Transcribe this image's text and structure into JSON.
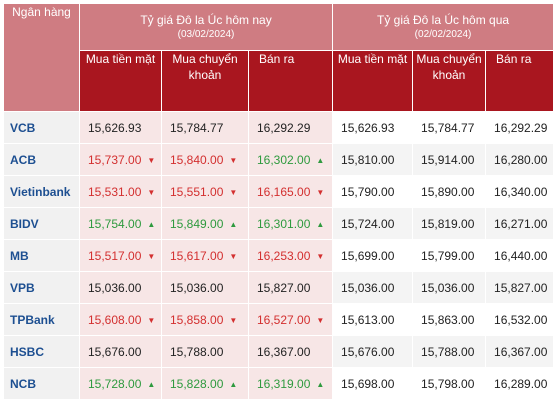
{
  "header": {
    "bank_label": "Ngân hàng",
    "today_title": "Tỷ giá Đô la Úc hôm nay",
    "today_date": "(03/02/2024)",
    "yesterday_title": "Tỷ giá Đô la Úc hôm qua",
    "yesterday_date": "(02/02/2024)",
    "col_cash": "Mua tiền mặt",
    "col_transfer": "Mua chuyển khoản",
    "col_sell": "Bán ra"
  },
  "colors": {
    "header_pink": "#cf7c82",
    "header_red": "#a9161f",
    "bank_blue": "#1d4f91",
    "up_green": "#2e9a3e",
    "down_red": "#d32f2f"
  },
  "rows": [
    {
      "bank": "VCB",
      "today": [
        {
          "v": "15,626.93",
          "dir": "same"
        },
        {
          "v": "15,784.77",
          "dir": "same"
        },
        {
          "v": "16,292.29",
          "dir": "same"
        }
      ],
      "yesterday": [
        "15,626.93",
        "15,784.77",
        "16,292.29"
      ]
    },
    {
      "bank": "ACB",
      "today": [
        {
          "v": "15,737.00",
          "dir": "down"
        },
        {
          "v": "15,840.00",
          "dir": "down"
        },
        {
          "v": "16,302.00",
          "dir": "up"
        }
      ],
      "yesterday": [
        "15,810.00",
        "15,914.00",
        "16,280.00"
      ]
    },
    {
      "bank": "Vietinbank",
      "today": [
        {
          "v": "15,531.00",
          "dir": "down"
        },
        {
          "v": "15,551.00",
          "dir": "down"
        },
        {
          "v": "16,165.00",
          "dir": "down"
        }
      ],
      "yesterday": [
        "15,790.00",
        "15,890.00",
        "16,340.00"
      ]
    },
    {
      "bank": "BIDV",
      "today": [
        {
          "v": "15,754.00",
          "dir": "up"
        },
        {
          "v": "15,849.00",
          "dir": "up"
        },
        {
          "v": "16,301.00",
          "dir": "up"
        }
      ],
      "yesterday": [
        "15,724.00",
        "15,819.00",
        "16,271.00"
      ]
    },
    {
      "bank": "MB",
      "today": [
        {
          "v": "15,517.00",
          "dir": "down"
        },
        {
          "v": "15,617.00",
          "dir": "down"
        },
        {
          "v": "16,253.00",
          "dir": "down"
        }
      ],
      "yesterday": [
        "15,699.00",
        "15,799.00",
        "16,440.00"
      ]
    },
    {
      "bank": "VPB",
      "today": [
        {
          "v": "15,036.00",
          "dir": "same"
        },
        {
          "v": "15,036.00",
          "dir": "same"
        },
        {
          "v": "15,827.00",
          "dir": "same"
        }
      ],
      "yesterday": [
        "15,036.00",
        "15,036.00",
        "15,827.00"
      ]
    },
    {
      "bank": "TPBank",
      "today": [
        {
          "v": "15,608.00",
          "dir": "down"
        },
        {
          "v": "15,858.00",
          "dir": "down"
        },
        {
          "v": "16,527.00",
          "dir": "down"
        }
      ],
      "yesterday": [
        "15,613.00",
        "15,863.00",
        "16,532.00"
      ]
    },
    {
      "bank": "HSBC",
      "today": [
        {
          "v": "15,676.00",
          "dir": "same"
        },
        {
          "v": "15,788.00",
          "dir": "same"
        },
        {
          "v": "16,367.00",
          "dir": "same"
        }
      ],
      "yesterday": [
        "15,676.00",
        "15,788.00",
        "16,367.00"
      ]
    },
    {
      "bank": "NCB",
      "today": [
        {
          "v": "15,728.00",
          "dir": "up"
        },
        {
          "v": "15,828.00",
          "dir": "up"
        },
        {
          "v": "16,319.00",
          "dir": "up"
        }
      ],
      "yesterday": [
        "15,698.00",
        "15,798.00",
        "16,289.00"
      ]
    }
  ]
}
